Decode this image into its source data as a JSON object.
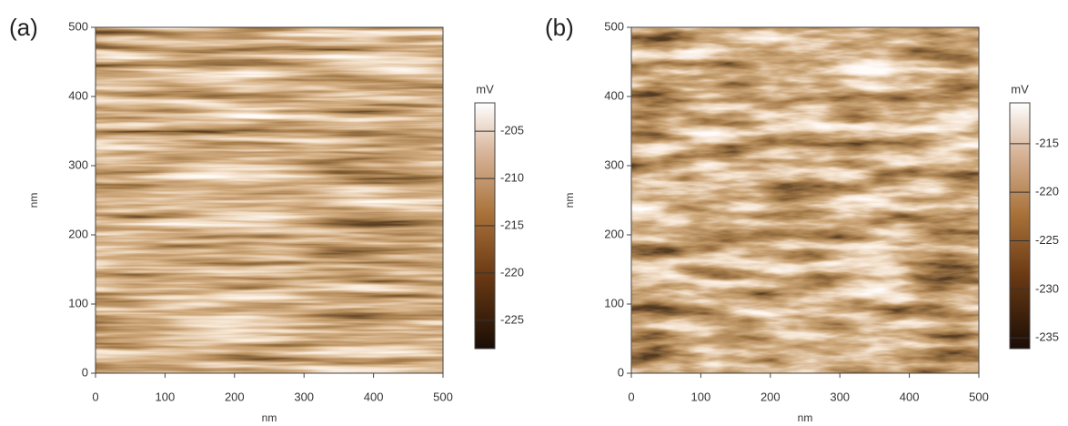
{
  "chart_data": [
    {
      "type": "heatmap",
      "label": "(a)",
      "xlabel": "nm",
      "ylabel": "nm",
      "xlim": [
        0,
        500
      ],
      "ylim": [
        0,
        500
      ],
      "xticks": [
        0,
        100,
        200,
        300,
        400,
        500
      ],
      "yticks": [
        0,
        100,
        200,
        300,
        400,
        500
      ],
      "colorbar": {
        "label": "mV",
        "lim": [
          -228,
          -202
        ],
        "ticks": [
          -205,
          -210,
          -215,
          -220,
          -225
        ]
      }
    },
    {
      "type": "heatmap",
      "label": "(b)",
      "xlabel": "nm",
      "ylabel": "nm",
      "xlim": [
        0,
        500
      ],
      "ylim": [
        0,
        500
      ],
      "xticks": [
        0,
        100,
        200,
        300,
        400,
        500
      ],
      "yticks": [
        0,
        100,
        200,
        300,
        400,
        500
      ],
      "colorbar": {
        "label": "mV",
        "lim": [
          -236.1,
          -210.8
        ],
        "ticks": [
          -215,
          -220,
          -225,
          -230,
          -235
        ]
      }
    }
  ]
}
